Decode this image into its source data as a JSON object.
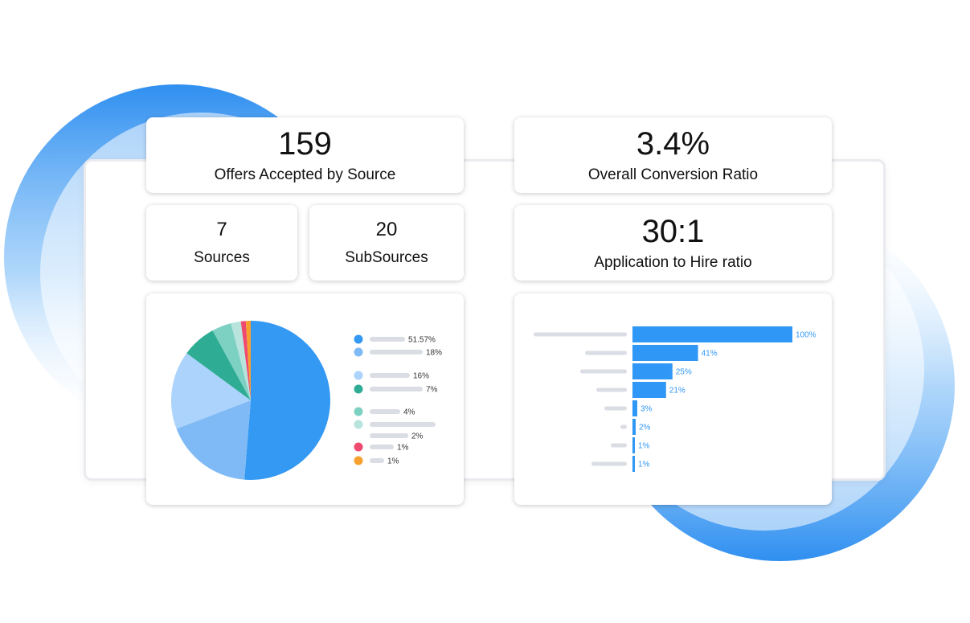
{
  "stats": {
    "offers_accepted": {
      "value": "159",
      "label": "Offers Accepted by Source"
    },
    "conversion_ratio": {
      "value": "3.4%",
      "label": "Overall Conversion Ratio"
    },
    "sources": {
      "value": "7",
      "label": "Sources"
    },
    "subsources": {
      "value": "20",
      "label": "SubSources"
    },
    "application_hire": {
      "value": "30:1",
      "label": "Application to Hire ratio"
    }
  },
  "colors": {
    "accent_blue": "#2f97f5",
    "decoration_blue": "#2f8ff0"
  },
  "chart_data": [
    {
      "type": "pie",
      "title": "",
      "slices": [
        {
          "value": 51.57,
          "label": "51.57%",
          "color": "#3399f3"
        },
        {
          "value": 18,
          "label": "18%",
          "color": "#7fbaf6"
        },
        {
          "value": 16,
          "label": "16%",
          "color": "#abd3fb"
        },
        {
          "value": 7,
          "label": "7%",
          "color": "#2fac94"
        },
        {
          "value": 4,
          "label": "4%",
          "color": "#7dd1c3"
        },
        {
          "value": 2,
          "label": "2%",
          "color": "#b8e4dd"
        },
        {
          "value": 1,
          "label": "1%",
          "color": "#ef4a6f"
        },
        {
          "value": 1,
          "label": "1%",
          "color": "#f6a12e"
        }
      ],
      "legend_position": "right"
    },
    {
      "type": "bar",
      "orientation": "horizontal",
      "title": "",
      "values": [
        100,
        41,
        25,
        21,
        3,
        2,
        1,
        1
      ],
      "value_labels": [
        "100%",
        "41%",
        "25%",
        "21%",
        "3%",
        "2%",
        "1%",
        "1%"
      ],
      "color": "#2f97f5",
      "xlim": [
        0,
        100
      ]
    }
  ]
}
